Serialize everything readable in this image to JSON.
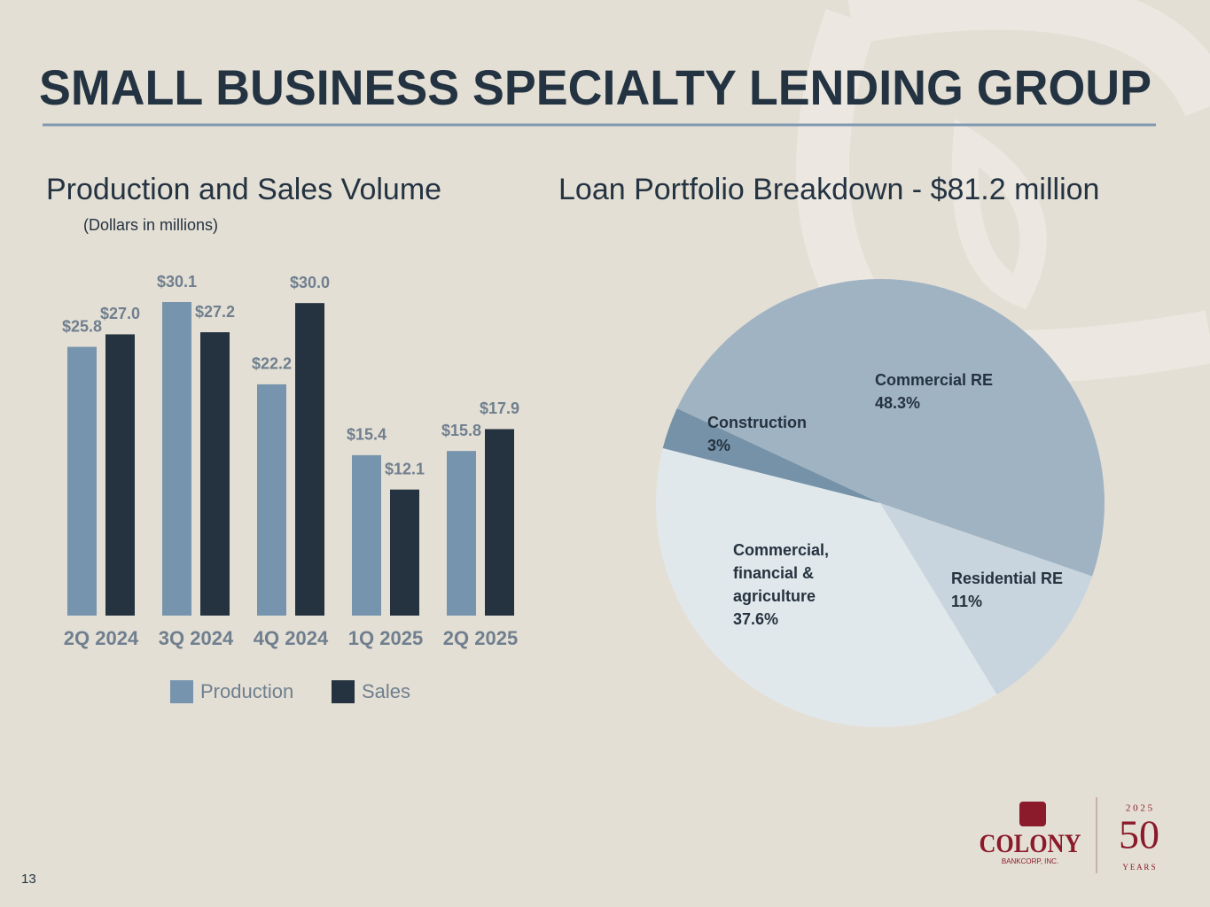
{
  "title": "SMALL BUSINESS SPECIALTY LENDING GROUP",
  "page_number": "13",
  "logo": {
    "name": "COLONY",
    "sub": "BANKCORP, INC.",
    "year": "2 0 2 5",
    "anniversary": "50",
    "years": "Y E A R S"
  },
  "chart_data": [
    {
      "type": "bar",
      "title": "Production and Sales Volume",
      "subtitle": "(Dollars in millions)",
      "categories": [
        "2Q 2024",
        "3Q 2024",
        "4Q 2024",
        "1Q 2025",
        "2Q 2025"
      ],
      "series": [
        {
          "name": "Production",
          "color": "#7694ad",
          "values": [
            25.8,
            30.1,
            22.2,
            15.4,
            15.8
          ],
          "value_labels": [
            "$25.8",
            "$30.1",
            "$22.2",
            "$15.4",
            "$15.8"
          ]
        },
        {
          "name": "Sales",
          "color": "#25323f",
          "values": [
            27.0,
            27.2,
            30.0,
            12.1,
            17.9
          ],
          "value_labels": [
            "$27.0",
            "$27.2",
            "$30.0",
            "$12.1",
            "$17.9"
          ]
        }
      ],
      "legend": "bottom"
    },
    {
      "type": "pie",
      "title": "Loan Portfolio Breakdown - $81.2 million",
      "categories": [
        "Commercial RE",
        "Residential RE",
        "Commercial, financial & agriculture",
        "Construction"
      ],
      "values": [
        48.3,
        11,
        37.6,
        3
      ],
      "value_labels": [
        "48.3%",
        "11%",
        "37.6%",
        "3%"
      ],
      "colors": [
        "#a0b3c3",
        "#c8d5de",
        "#e1e8ec",
        "#7592a8"
      ]
    }
  ]
}
